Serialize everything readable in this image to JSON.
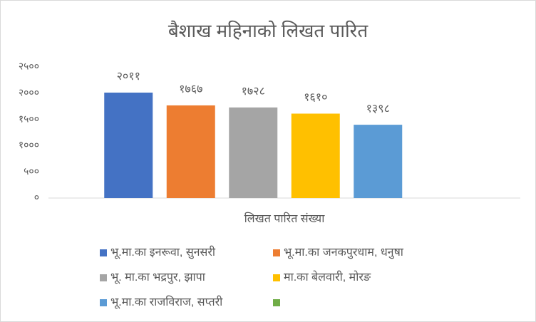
{
  "chart_data": {
    "type": "bar",
    "title": "बैशाख महिनाको लिखत पारित",
    "x_label": "लिखत पारित संख्या",
    "categories": [
      "लिखत पारित संख्या"
    ],
    "series": [
      {
        "name": "भू.मा.का इनरूवा, सुनसरी",
        "color": "#4472c4",
        "values": [
          2011
        ],
        "value_labels": [
          "२०११"
        ]
      },
      {
        "name": "भू.मा.का जनकपुरधाम, धनुषा",
        "color": "#ed7d31",
        "values": [
          1767
        ],
        "value_labels": [
          "१७६७"
        ]
      },
      {
        "name": "भू. मा.का  भद्रपुर, झापा",
        "color": "#a5a5a5",
        "values": [
          1728
        ],
        "value_labels": [
          "१७२८"
        ]
      },
      {
        "name": "मा.का बेलवारी, मोरङ",
        "color": "#ffc000",
        "values": [
          1610
        ],
        "value_labels": [
          "१६१०"
        ]
      },
      {
        "name": "भू.मा.का राजविराज, सप्तरी",
        "color": "#5b9bd5",
        "values": [
          1398
        ],
        "value_labels": [
          "१३९८"
        ]
      },
      {
        "name": null,
        "color": "#70ad47",
        "values": [
          null
        ]
      }
    ],
    "ylim": [
      0,
      2500
    ],
    "yticks": [
      {
        "value": 0,
        "label": "०"
      },
      {
        "value": 500,
        "label": "५००"
      },
      {
        "value": 1000,
        "label": "१०००"
      },
      {
        "value": 1500,
        "label": "१५००"
      },
      {
        "value": 2000,
        "label": "२०००"
      },
      {
        "value": 2500,
        "label": "२५००"
      }
    ],
    "grid": false,
    "legend": "bottom"
  }
}
